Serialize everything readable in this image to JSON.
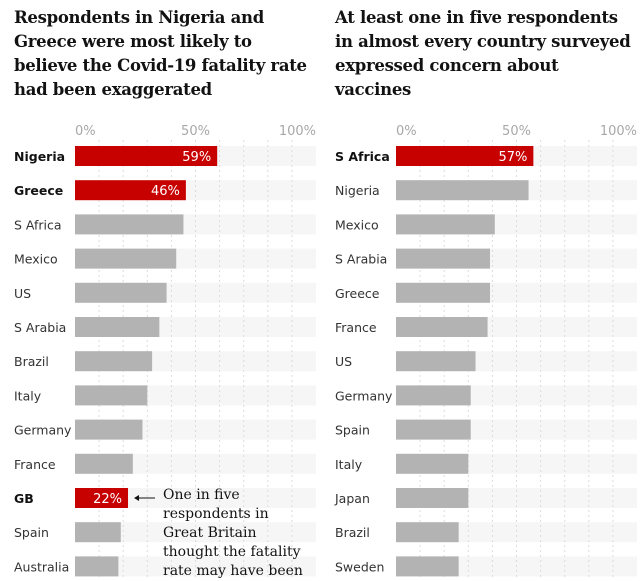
{
  "chart_data": [
    {
      "type": "bar",
      "orientation": "horizontal",
      "title": "Respondents in Nigeria and Greece were most likely to believe the Covid-19 fatality rate had been exaggerated",
      "xlim": [
        0,
        100
      ],
      "ticks": [
        "0%",
        "50%",
        "100%"
      ],
      "grid": true,
      "categories": [
        "Nigeria",
        "Greece",
        "S Africa",
        "Mexico",
        "US",
        "S Arabia",
        "Brazil",
        "Italy",
        "Germany",
        "France",
        "GB",
        "Spain",
        "Australia"
      ],
      "values": [
        59,
        46,
        45,
        42,
        38,
        35,
        32,
        30,
        28,
        24,
        22,
        19,
        18
      ],
      "highlighted": [
        "Nigeria",
        "Greece",
        "GB"
      ],
      "data_labels": {
        "Nigeria": "59%",
        "Greece": "46%",
        "GB": "22%"
      },
      "annotation": {
        "target": "GB",
        "text": "One in five respondents in Great Britain thought the fatality rate may have been"
      }
    },
    {
      "type": "bar",
      "orientation": "horizontal",
      "title": "At least one in five respondents in almost every country surveyed expressed concern about vaccines",
      "xlim": [
        0,
        100
      ],
      "ticks": [
        "0%",
        "50%",
        "100%"
      ],
      "grid": true,
      "categories": [
        "S Africa",
        "Nigeria",
        "Mexico",
        "S Arabia",
        "Greece",
        "France",
        "US",
        "Germany",
        "Spain",
        "Italy",
        "Japan",
        "Brazil",
        "Sweden"
      ],
      "values": [
        57,
        55,
        41,
        39,
        39,
        38,
        33,
        31,
        31,
        30,
        30,
        26,
        26
      ],
      "highlighted": [
        "S Africa"
      ],
      "data_labels": {
        "S Africa": "57%"
      }
    }
  ],
  "colors": {
    "highlight": "#c70000",
    "bar": "#b3b3b3",
    "row_bg": "#f6f6f6",
    "tick": "#a8a8a8",
    "grid": "#dcdcdc"
  }
}
